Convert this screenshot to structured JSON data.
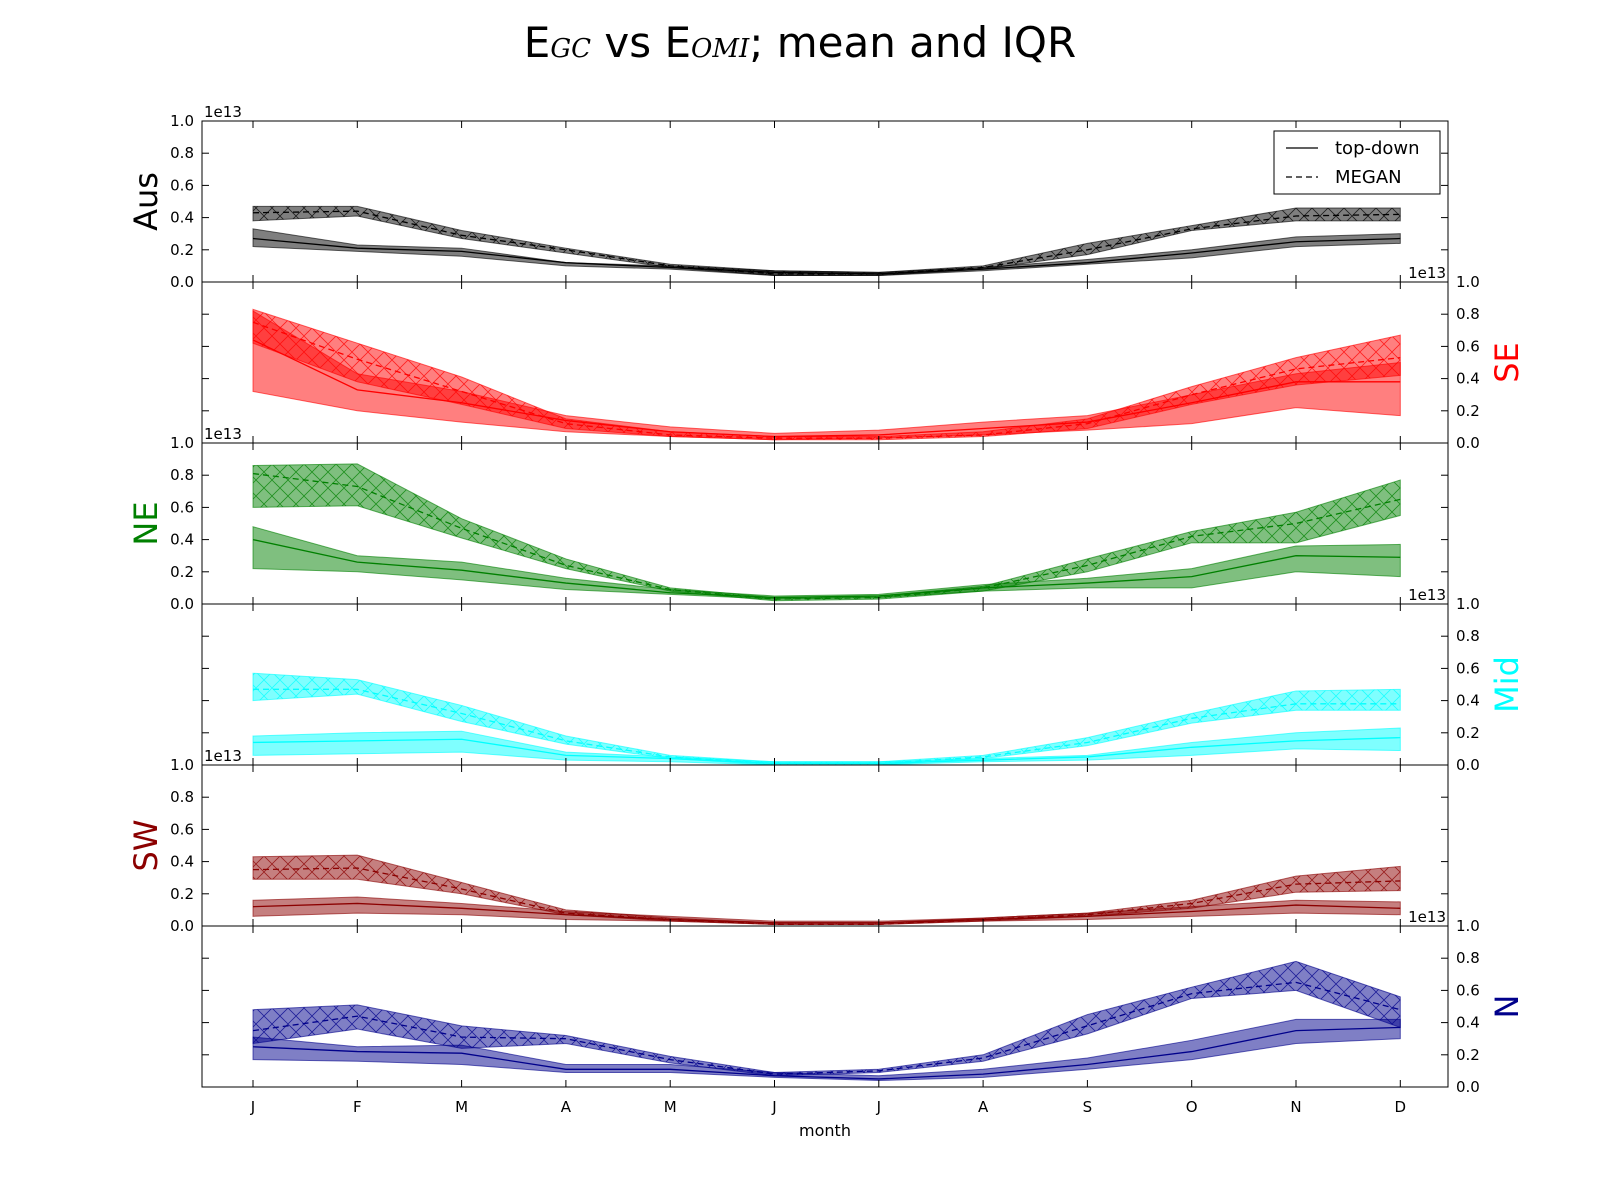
{
  "figure": {
    "title_prefix_a": "E",
    "title_sub_a": "GC",
    "title_mid": " vs E",
    "title_sub_b": "OMI",
    "title_suffix": "; mean and IQR",
    "xlabel": "month",
    "exponent_label": "1e13",
    "legend": [
      "top-down",
      "MEGAN"
    ],
    "legend_placement": "top-right of first panel"
  },
  "chart_data": {
    "type": "line",
    "categories": [
      "J",
      "F",
      "M",
      "A",
      "M",
      "J",
      "J",
      "A",
      "S",
      "O",
      "N",
      "D"
    ],
    "ylim": [
      0,
      1.0
    ],
    "yticks": [
      "0.0",
      "0.2",
      "0.4",
      "0.6",
      "0.8",
      "1.0"
    ],
    "value_scale": "1e13",
    "grid": false,
    "panels": [
      {
        "region": "Aus",
        "color": "#000000",
        "axis_side": "left",
        "topdown": {
          "mean": [
            0.27,
            0.21,
            0.19,
            0.12,
            0.09,
            0.06,
            0.05,
            0.08,
            0.12,
            0.18,
            0.25,
            0.27
          ],
          "q1": [
            0.22,
            0.19,
            0.16,
            0.1,
            0.08,
            0.04,
            0.04,
            0.07,
            0.11,
            0.15,
            0.22,
            0.24
          ],
          "q3": [
            0.33,
            0.23,
            0.21,
            0.12,
            0.1,
            0.07,
            0.06,
            0.09,
            0.14,
            0.2,
            0.28,
            0.3
          ]
        },
        "megan": {
          "mean": [
            0.43,
            0.44,
            0.29,
            0.2,
            0.1,
            0.05,
            0.05,
            0.09,
            0.2,
            0.33,
            0.41,
            0.42
          ],
          "q1": [
            0.38,
            0.41,
            0.27,
            0.18,
            0.09,
            0.04,
            0.04,
            0.08,
            0.17,
            0.32,
            0.38,
            0.38
          ],
          "q3": [
            0.47,
            0.47,
            0.32,
            0.21,
            0.11,
            0.07,
            0.06,
            0.1,
            0.24,
            0.35,
            0.46,
            0.46
          ]
        }
      },
      {
        "region": "SE",
        "color": "#ff0000",
        "axis_side": "right",
        "topdown": {
          "mean": [
            0.64,
            0.33,
            0.25,
            0.14,
            0.07,
            0.04,
            0.05,
            0.09,
            0.13,
            0.25,
            0.38,
            0.38
          ],
          "q1": [
            0.32,
            0.2,
            0.13,
            0.07,
            0.04,
            0.02,
            0.03,
            0.05,
            0.08,
            0.12,
            0.22,
            0.17
          ],
          "q3": [
            0.82,
            0.43,
            0.32,
            0.17,
            0.1,
            0.06,
            0.08,
            0.13,
            0.17,
            0.3,
            0.43,
            0.5
          ]
        },
        "megan": {
          "mean": [
            0.75,
            0.52,
            0.32,
            0.12,
            0.05,
            0.03,
            0.03,
            0.05,
            0.12,
            0.3,
            0.46,
            0.53
          ],
          "q1": [
            0.62,
            0.38,
            0.24,
            0.09,
            0.04,
            0.02,
            0.02,
            0.04,
            0.09,
            0.24,
            0.36,
            0.42
          ],
          "q3": [
            0.83,
            0.62,
            0.41,
            0.15,
            0.07,
            0.04,
            0.04,
            0.07,
            0.15,
            0.35,
            0.53,
            0.67
          ]
        }
      },
      {
        "region": "NE",
        "color": "#008000",
        "axis_side": "left",
        "topdown": {
          "mean": [
            0.4,
            0.26,
            0.21,
            0.13,
            0.07,
            0.04,
            0.05,
            0.1,
            0.13,
            0.17,
            0.3,
            0.29
          ],
          "q1": [
            0.22,
            0.2,
            0.15,
            0.09,
            0.06,
            0.03,
            0.04,
            0.08,
            0.1,
            0.1,
            0.2,
            0.17
          ],
          "q3": [
            0.48,
            0.3,
            0.26,
            0.16,
            0.09,
            0.05,
            0.06,
            0.12,
            0.16,
            0.22,
            0.36,
            0.37
          ]
        },
        "megan": {
          "mean": [
            0.81,
            0.73,
            0.47,
            0.24,
            0.09,
            0.03,
            0.04,
            0.1,
            0.24,
            0.42,
            0.5,
            0.65
          ],
          "q1": [
            0.6,
            0.61,
            0.41,
            0.22,
            0.08,
            0.02,
            0.03,
            0.08,
            0.2,
            0.38,
            0.38,
            0.55
          ],
          "q3": [
            0.86,
            0.87,
            0.53,
            0.28,
            0.1,
            0.04,
            0.05,
            0.11,
            0.28,
            0.45,
            0.57,
            0.77
          ]
        }
      },
      {
        "region": "Mid",
        "color": "#00ffff",
        "axis_side": "right",
        "topdown": {
          "mean": [
            0.14,
            0.15,
            0.16,
            0.06,
            0.04,
            0.01,
            0.01,
            0.03,
            0.05,
            0.11,
            0.15,
            0.17
          ],
          "q1": [
            0.06,
            0.07,
            0.08,
            0.03,
            0.02,
            0.0,
            0.0,
            0.02,
            0.03,
            0.06,
            0.1,
            0.09
          ],
          "q3": [
            0.18,
            0.2,
            0.21,
            0.08,
            0.05,
            0.02,
            0.02,
            0.04,
            0.06,
            0.14,
            0.2,
            0.23
          ]
        },
        "megan": {
          "mean": [
            0.47,
            0.47,
            0.32,
            0.15,
            0.05,
            0.01,
            0.01,
            0.05,
            0.14,
            0.29,
            0.38,
            0.38
          ],
          "q1": [
            0.4,
            0.44,
            0.27,
            0.13,
            0.04,
            0.0,
            0.0,
            0.04,
            0.12,
            0.26,
            0.34,
            0.34
          ],
          "q3": [
            0.57,
            0.53,
            0.37,
            0.18,
            0.06,
            0.02,
            0.02,
            0.06,
            0.17,
            0.32,
            0.46,
            0.47
          ]
        }
      },
      {
        "region": "SW",
        "color": "#8b0000",
        "axis_side": "left",
        "topdown": {
          "mean": [
            0.12,
            0.14,
            0.11,
            0.07,
            0.04,
            0.02,
            0.02,
            0.04,
            0.06,
            0.09,
            0.13,
            0.11
          ],
          "q1": [
            0.06,
            0.08,
            0.07,
            0.04,
            0.03,
            0.01,
            0.01,
            0.03,
            0.04,
            0.06,
            0.08,
            0.07
          ],
          "q3": [
            0.16,
            0.18,
            0.14,
            0.09,
            0.06,
            0.03,
            0.03,
            0.05,
            0.08,
            0.12,
            0.16,
            0.15
          ]
        },
        "megan": {
          "mean": [
            0.35,
            0.36,
            0.23,
            0.08,
            0.04,
            0.01,
            0.01,
            0.04,
            0.07,
            0.14,
            0.26,
            0.28
          ],
          "q1": [
            0.29,
            0.29,
            0.2,
            0.07,
            0.03,
            0.01,
            0.01,
            0.03,
            0.06,
            0.11,
            0.21,
            0.22
          ],
          "q3": [
            0.43,
            0.44,
            0.27,
            0.1,
            0.05,
            0.02,
            0.02,
            0.05,
            0.08,
            0.16,
            0.31,
            0.37
          ]
        }
      },
      {
        "region": "N",
        "color": "#00008b",
        "axis_side": "right",
        "topdown": {
          "mean": [
            0.25,
            0.22,
            0.21,
            0.11,
            0.11,
            0.07,
            0.05,
            0.08,
            0.14,
            0.22,
            0.35,
            0.37
          ],
          "q1": [
            0.17,
            0.16,
            0.14,
            0.09,
            0.09,
            0.06,
            0.04,
            0.06,
            0.11,
            0.17,
            0.27,
            0.3
          ],
          "q3": [
            0.31,
            0.25,
            0.26,
            0.14,
            0.14,
            0.09,
            0.07,
            0.11,
            0.18,
            0.29,
            0.42,
            0.42
          ]
        },
        "megan": {
          "mean": [
            0.35,
            0.44,
            0.31,
            0.3,
            0.17,
            0.08,
            0.1,
            0.18,
            0.38,
            0.58,
            0.65,
            0.48
          ],
          "q1": [
            0.27,
            0.36,
            0.24,
            0.27,
            0.15,
            0.07,
            0.09,
            0.16,
            0.33,
            0.55,
            0.6,
            0.37
          ],
          "q3": [
            0.48,
            0.51,
            0.38,
            0.32,
            0.19,
            0.09,
            0.11,
            0.2,
            0.45,
            0.62,
            0.78,
            0.56
          ]
        }
      }
    ]
  }
}
